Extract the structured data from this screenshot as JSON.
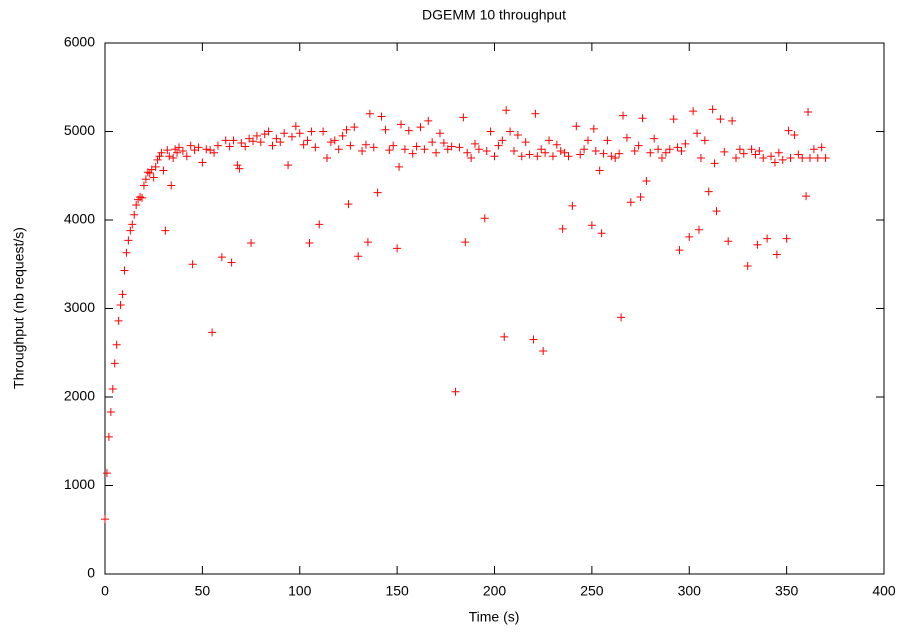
{
  "chart_data": {
    "type": "scatter",
    "title": "DGEMM 10 throughput",
    "x_label": "Time (s)",
    "y_label": "Throughput (nb request/s)",
    "color": "#ff0000",
    "xlim": [
      0,
      400
    ],
    "xticks": [
      0,
      50,
      100,
      150,
      200,
      250,
      300,
      350,
      400
    ],
    "ylim": [
      0,
      6000
    ],
    "yticks": [
      0,
      1000,
      2000,
      3000,
      4000,
      5000,
      6000
    ],
    "x": [
      0,
      1,
      2,
      3,
      4,
      5,
      6,
      7,
      8,
      9,
      10,
      11,
      12,
      13,
      14,
      15,
      16,
      17,
      18,
      19,
      20,
      21,
      22,
      23,
      24,
      25,
      26,
      27,
      28,
      29,
      30,
      31,
      32,
      33,
      34,
      35,
      36,
      37,
      38,
      40,
      42,
      44,
      45,
      46,
      48,
      50,
      52,
      54,
      55,
      56,
      58,
      60,
      62,
      64,
      65,
      66,
      68,
      69,
      70,
      72,
      74,
      75,
      76,
      78,
      80,
      82,
      84,
      86,
      88,
      90,
      92,
      94,
      96,
      98,
      100,
      102,
      104,
      105,
      106,
      108,
      110,
      112,
      114,
      116,
      118,
      120,
      122,
      124,
      125,
      126,
      128,
      130,
      132,
      134,
      135,
      136,
      138,
      140,
      142,
      144,
      146,
      148,
      150,
      151,
      152,
      154,
      156,
      158,
      160,
      162,
      164,
      166,
      168,
      170,
      172,
      174,
      176,
      178,
      180,
      182,
      184,
      185,
      186,
      188,
      190,
      192,
      195,
      196,
      198,
      200,
      202,
      204,
      205,
      206,
      208,
      210,
      212,
      214,
      216,
      218,
      220,
      221,
      222,
      224,
      225,
      226,
      228,
      230,
      232,
      234,
      235,
      236,
      238,
      240,
      242,
      244,
      246,
      248,
      250,
      251,
      252,
      254,
      255,
      256,
      258,
      260,
      262,
      264,
      265,
      266,
      268,
      270,
      272,
      274,
      275,
      276,
      278,
      280,
      282,
      284,
      286,
      288,
      290,
      292,
      294,
      295,
      296,
      298,
      300,
      302,
      304,
      305,
      306,
      308,
      310,
      312,
      313,
      314,
      316,
      318,
      320,
      322,
      324,
      326,
      328,
      330,
      332,
      334,
      335,
      336,
      338,
      340,
      342,
      344,
      345,
      346,
      348,
      350,
      351,
      352,
      354,
      356,
      358,
      360,
      361,
      362,
      364,
      366,
      368,
      370
    ],
    "values": [
      620,
      1140,
      1550,
      1830,
      2090,
      2380,
      2590,
      2860,
      3040,
      3160,
      3430,
      3630,
      3770,
      3880,
      3950,
      4060,
      4170,
      4230,
      4260,
      4250,
      4390,
      4460,
      4540,
      4530,
      4570,
      4480,
      4600,
      4680,
      4720,
      4760,
      4560,
      3880,
      4790,
      4720,
      4390,
      4700,
      4800,
      4760,
      4820,
      4780,
      4720,
      4840,
      3500,
      4790,
      4820,
      4650,
      4800,
      4790,
      2730,
      4760,
      4840,
      3580,
      4900,
      4830,
      3520,
      4900,
      4620,
      4580,
      4870,
      4830,
      4920,
      3740,
      4890,
      4950,
      4880,
      4970,
      5000,
      4840,
      4920,
      4880,
      4980,
      4620,
      4940,
      5060,
      4980,
      4850,
      4900,
      3740,
      5000,
      4820,
      3950,
      5000,
      4700,
      4880,
      4900,
      4800,
      4950,
      5020,
      4180,
      4840,
      5050,
      3590,
      4780,
      4850,
      3750,
      5200,
      4820,
      4310,
      5170,
      5020,
      4790,
      4840,
      3680,
      4600,
      5080,
      4800,
      5010,
      4750,
      4830,
      5050,
      4800,
      5120,
      4880,
      4760,
      4980,
      4870,
      4800,
      4830,
      2060,
      4820,
      5160,
      3750,
      4760,
      4700,
      4860,
      4800,
      4020,
      4780,
      5000,
      4720,
      4840,
      4900,
      2680,
      5240,
      5000,
      4780,
      4960,
      4720,
      4880,
      4740,
      2650,
      5200,
      4720,
      4800,
      2520,
      4760,
      4900,
      4720,
      4850,
      4780,
      3900,
      4760,
      4720,
      4160,
      5060,
      4740,
      4800,
      4900,
      3940,
      5030,
      4780,
      4560,
      3850,
      4750,
      4900,
      4720,
      4700,
      4750,
      2900,
      5180,
      4930,
      4200,
      4780,
      4840,
      4260,
      5150,
      4440,
      4760,
      4920,
      4800,
      4700,
      4760,
      4800,
      5140,
      4820,
      3660,
      4780,
      4860,
      3810,
      5230,
      4980,
      3890,
      4700,
      4900,
      4320,
      5250,
      4640,
      4100,
      5140,
      4770,
      3760,
      5120,
      4700,
      4800,
      4750,
      3480,
      4800,
      4740,
      3720,
      4780,
      4700,
      3790,
      4720,
      4650,
      3610,
      4760,
      4680,
      3790,
      5010,
      4700,
      4960,
      4740,
      4700,
      4270,
      5220,
      4700,
      4800,
      4700,
      4820,
      4700
    ]
  }
}
